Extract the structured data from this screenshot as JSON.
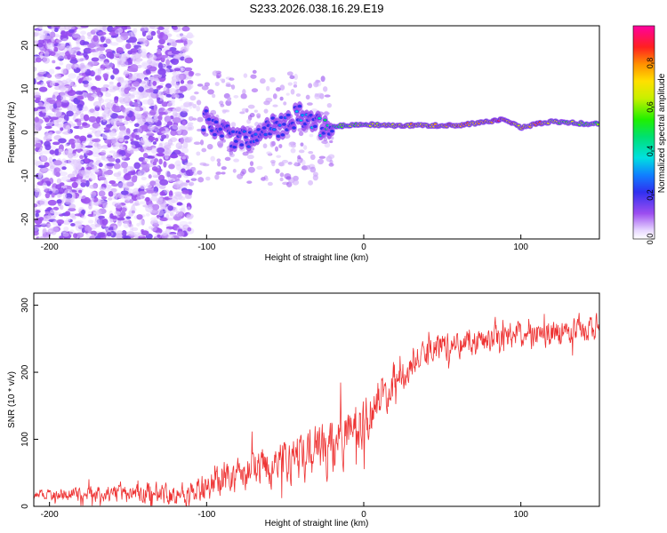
{
  "chart_data": [
    {
      "type": "heatmap",
      "title": "S233.2026.038.16.29.E19",
      "xlabel": "Height of straight line (km)",
      "ylabel": "Frequency (Hz)",
      "xlim": [
        -210,
        150
      ],
      "ylim": [
        -24.5,
        24.5
      ],
      "x_ticks": [
        -200,
        -100,
        0,
        100
      ],
      "y_ticks": [
        -20,
        -10,
        0,
        10,
        20
      ],
      "colorbar": {
        "label": "Normalized spectral amplitude",
        "range": [
          0,
          0.97
        ],
        "ticks": [
          0.0,
          0.2,
          0.4,
          0.6,
          0.8
        ]
      },
      "ridge": {
        "x": [
          -100,
          -90,
          -80,
          -70,
          -60,
          -50,
          -40,
          -30,
          -20,
          -10,
          0,
          20,
          40,
          60,
          80,
          90,
          100,
          110,
          120,
          140,
          150
        ],
        "freq": [
          2.5,
          0.5,
          -2.0,
          -1.0,
          0.5,
          2.0,
          4.0,
          1.5,
          1.5,
          1.5,
          1.8,
          1.6,
          1.6,
          1.6,
          2.5,
          3.0,
          1.0,
          2.0,
          2.5,
          2.0,
          2.0
        ],
        "amplitude": [
          0.2,
          0.25,
          0.25,
          0.25,
          0.3,
          0.3,
          0.35,
          0.35,
          0.55,
          0.6,
          0.65,
          0.75,
          0.8,
          0.8,
          0.85,
          0.9,
          0.75,
          0.85,
          0.7,
          0.6,
          0.6
        ]
      }
    },
    {
      "type": "line",
      "color": "#ee3333",
      "xlabel": "Height of straight line (km)",
      "ylabel": "SNR (10 * v/v)",
      "xlim": [
        -210,
        150
      ],
      "ylim": [
        0,
        318
      ],
      "x_ticks": [
        -200,
        -100,
        0,
        100
      ],
      "y_ticks": [
        0,
        100,
        200,
        300
      ],
      "trend": {
        "x": [
          -210,
          -110,
          -100,
          -80,
          -60,
          -40,
          -30,
          -20,
          -10,
          0,
          10,
          20,
          30,
          40,
          50,
          70,
          90,
          110,
          130,
          150
        ],
        "y": [
          18,
          20,
          30,
          45,
          60,
          75,
          80,
          90,
          105,
          130,
          160,
          190,
          210,
          230,
          240,
          245,
          255,
          255,
          262,
          265
        ]
      },
      "noise": {
        "x": [
          -210,
          -100,
          -50,
          -20,
          0,
          30,
          60,
          150
        ],
        "amplitude": [
          10,
          28,
          45,
          60,
          55,
          30,
          28,
          28
        ]
      }
    }
  ]
}
